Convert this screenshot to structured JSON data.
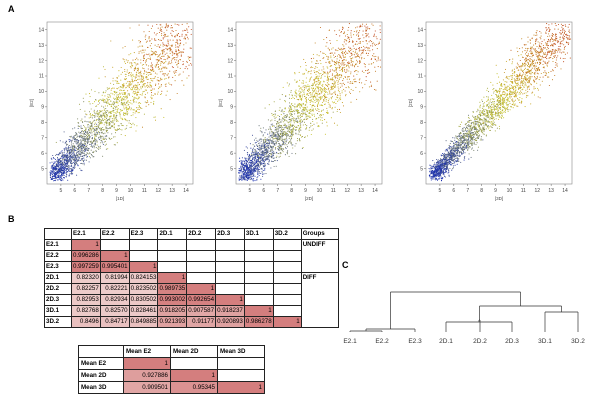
{
  "panels": {
    "a": "A",
    "b": "B",
    "c": "C"
  },
  "scatter_plots": [
    {
      "xlabel": "[1D]",
      "ylabel": "[E2]"
    },
    {
      "xlabel": "[2D]",
      "ylabel": "[E2]"
    },
    {
      "xlabel": "[3D]",
      "ylabel": "[2D]"
    }
  ],
  "chart_data": {
    "type": "scatter",
    "xlim": [
      4,
      14.5
    ],
    "ylim": [
      4,
      14.5
    ],
    "x_ticks": [
      "5",
      "6",
      "7",
      "8",
      "9",
      "10",
      "11",
      "12",
      "13",
      "14"
    ],
    "y_ticks": [
      "5",
      "6",
      "7",
      "8",
      "9",
      "10",
      "11",
      "12",
      "13",
      "14"
    ],
    "color_gradient": [
      "#1a2fb0",
      "#c9c92a",
      "#c0451c"
    ]
  },
  "correlation_table": {
    "columns": [
      "E2.1",
      "E2.2",
      "E2.3",
      "2D.1",
      "2D.2",
      "2D.3",
      "3D.1",
      "3D.2"
    ],
    "groups_header": "Groups",
    "rows": [
      {
        "label": "E2.1",
        "cells": [
          "1"
        ]
      },
      {
        "label": "E2.2",
        "cells": [
          "0.996286",
          "1"
        ]
      },
      {
        "label": "E2.3",
        "cells": [
          "0.997259",
          "0.995401",
          "1"
        ]
      },
      {
        "label": "2D.1",
        "cells": [
          "0.82320",
          "0.81994",
          "0.824153",
          "1"
        ]
      },
      {
        "label": "2D.2",
        "cells": [
          "0.82257",
          "0.82221",
          "0.823502",
          "0.989735",
          "1"
        ]
      },
      {
        "label": "2D.3",
        "cells": [
          "0.82953",
          "0.82934",
          "0.830502",
          "0.993002",
          "0.992654",
          "1"
        ]
      },
      {
        "label": "3D.1",
        "cells": [
          "0.82768",
          "0.82570",
          "0.828461",
          "0.918205",
          "0.907587",
          "0.918237",
          "1"
        ]
      },
      {
        "label": "3D.2",
        "cells": [
          "0.8496",
          "0.84717",
          "0.849885",
          "0.921393",
          "0.91177",
          "0.920893",
          "0.986278",
          "1"
        ]
      }
    ],
    "groups": [
      "UNDIFF",
      "DIFF"
    ]
  },
  "mean_table": {
    "columns": [
      "Mean E2",
      "Mean 2D",
      "Mean 3D"
    ],
    "rows": [
      {
        "label": "Mean E2",
        "cells": [
          "1",
          "",
          ""
        ]
      },
      {
        "label": "Mean 2D",
        "cells": [
          "0.927886",
          "1",
          ""
        ]
      },
      {
        "label": "Mean 3D",
        "cells": [
          "0.909501",
          "0.95345",
          "1"
        ]
      }
    ]
  },
  "dendrogram": {
    "leaves": [
      "E2.1",
      "E2.2",
      "E2.3",
      "2D.1",
      "2D.2",
      "2D.3",
      "3D.1",
      "3D.2"
    ]
  }
}
